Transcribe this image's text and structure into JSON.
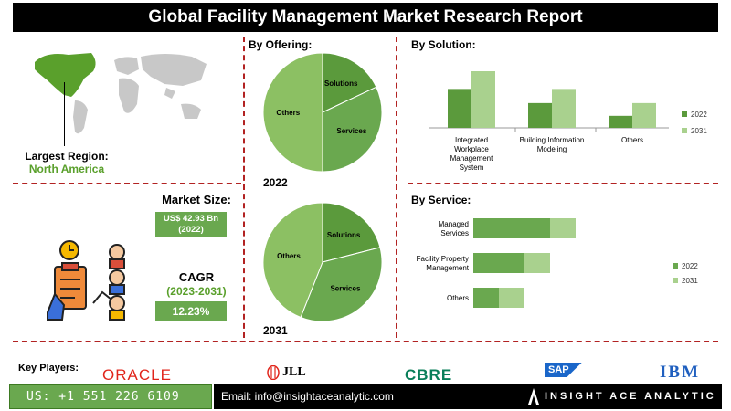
{
  "title": "Global Facility Management Market Research Report",
  "region": {
    "label": "Largest Region:",
    "value": "North America"
  },
  "market_size": {
    "label": "Market Size:",
    "value": "US$ 42.93 Bn",
    "year": "(2022)"
  },
  "cagr": {
    "label": "CAGR",
    "years": "(2023-2031)",
    "value": "12.23%"
  },
  "offering": {
    "title": "By Offering:",
    "year_a": "2022",
    "year_b": "2031"
  },
  "solution": {
    "title": "By Solution:"
  },
  "service": {
    "title": "By Service:"
  },
  "key_players": {
    "label": "Key Players:",
    "logos": [
      "ORACLE",
      "JLL",
      "CBRE",
      "SAP",
      "IBM"
    ]
  },
  "footer": {
    "phone": "US: +1 551 226 6109",
    "email": "Email: info@insightaceanalytic.com",
    "brand": "INSIGHT ACE ANALYTIC"
  },
  "colors": {
    "dark_green": "#5b9a3c",
    "mid_green": "#6aa84f",
    "light_green": "#a9d18e",
    "pie_green": "#7fb55a",
    "accent_red": "#b22222"
  },
  "chart_data": [
    {
      "type": "pie",
      "title": "2022",
      "categories": [
        "Solutions",
        "Services",
        "Others"
      ],
      "values": [
        18,
        32,
        50
      ]
    },
    {
      "type": "pie",
      "title": "2031",
      "categories": [
        "Solutions",
        "Services",
        "Others"
      ],
      "values": [
        21,
        35,
        44
      ]
    },
    {
      "type": "bar",
      "title": "By Solution:",
      "categories": [
        "Integrated Workplace Management System",
        "Building Information Modeling",
        "Others"
      ],
      "series": [
        {
          "name": "2022",
          "values": [
            55,
            35,
            17
          ]
        },
        {
          "name": "2031",
          "values": [
            80,
            55,
            35
          ]
        }
      ],
      "ylim": [
        0,
        80
      ],
      "legend": "right"
    },
    {
      "type": "bar",
      "orientation": "horizontal",
      "title": "By Service:",
      "categories": [
        "Managed Services",
        "Facility Property Management",
        "Others"
      ],
      "series": [
        {
          "name": "2022",
          "values": [
            60,
            40,
            20
          ]
        },
        {
          "name": "2031",
          "values": [
            80,
            60,
            40
          ]
        }
      ],
      "stacked": true,
      "legend": "right"
    }
  ]
}
